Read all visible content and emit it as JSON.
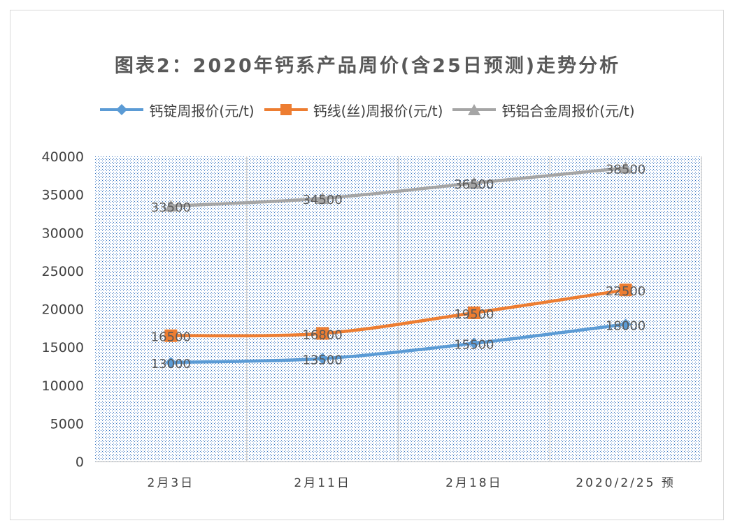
{
  "chart_data": {
    "type": "line",
    "title": "图表2：2020年钙系产品周价(含25日预测)走势分析",
    "categories": [
      "2月3日",
      "2月11日",
      "2月18日",
      "2020/2/25  预"
    ],
    "ylim": [
      0,
      40000
    ],
    "yticks": [
      0,
      5000,
      10000,
      15000,
      20000,
      25000,
      30000,
      35000,
      40000
    ],
    "legend_position": "top",
    "grid": "vertical",
    "series": [
      {
        "name": "钙锭周报价(元/t)",
        "values": [
          13000,
          13500,
          15500,
          18000
        ],
        "color": "#5b9bd5",
        "marker": "diamond"
      },
      {
        "name": "钙线(丝)周报价(元/t)",
        "values": [
          16500,
          16800,
          19500,
          22500
        ],
        "color": "#ed7d31",
        "marker": "square"
      },
      {
        "name": "钙铝合金周报价(元/t)",
        "values": [
          33500,
          34500,
          36500,
          38500
        ],
        "color": "#a5a5a5",
        "marker": "triangle"
      }
    ]
  }
}
